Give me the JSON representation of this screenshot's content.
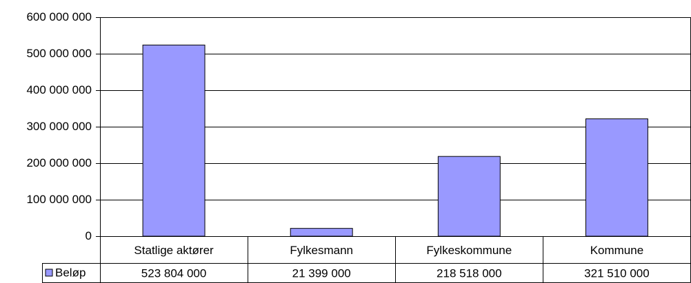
{
  "chart_data": {
    "type": "bar",
    "categories": [
      "Statlige aktører",
      "Fylkesmann",
      "Fylkeskommune",
      "Kommune"
    ],
    "series": [
      {
        "name": "Beløp",
        "color": "#9999ff",
        "values": [
          523804000,
          21399000,
          218518000,
          321510000
        ],
        "value_labels": [
          "523 804 000",
          "21 399 000",
          "218 518 000",
          "321 510 000"
        ]
      }
    ],
    "ylim": [
      0,
      600000000
    ],
    "yticks": [
      0,
      {
        "value": 100000000,
        "label": "100 000 000"
      },
      {
        "value": 200000000,
        "label": "200 000 000"
      },
      {
        "value": 300000000,
        "label": "300 000 000"
      },
      {
        "value": 400000000,
        "label": "400 000 000"
      },
      {
        "value": 500000000,
        "label": "500 000 000"
      },
      {
        "value": 600000000,
        "label": "600 000 000"
      }
    ],
    "grid": true
  }
}
